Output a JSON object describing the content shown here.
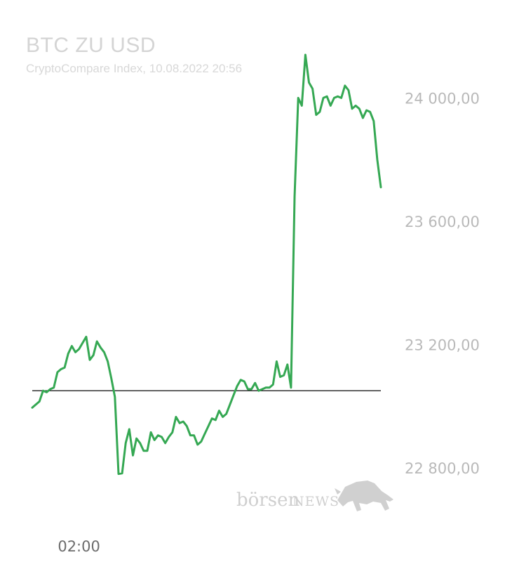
{
  "header": {
    "title": "BTC ZU USD",
    "subtitle": "CryptoCompare Index, 10.08.2022 20:56"
  },
  "watermark": {
    "brand_lower": "börsen",
    "brand_upper": "NEWS",
    "icon": "bull-icon"
  },
  "colors": {
    "line": "#35a853",
    "reference": "#333333",
    "tick_text": "#b9b9b9",
    "title_text": "#d4d4d4"
  },
  "chart_data": {
    "type": "line",
    "title": "BTC ZU USD",
    "subtitle": "CryptoCompare Index, 10.08.2022 20:56",
    "xlabel": "",
    "ylabel": "",
    "ylim": [
      22745,
      24140
    ],
    "y_ticks": [
      {
        "value": 24000,
        "label": "24 000,00"
      },
      {
        "value": 23600,
        "label": "23 600,00"
      },
      {
        "value": 23200,
        "label": "23 200,00"
      },
      {
        "value": 22800,
        "label": "22 800,00"
      }
    ],
    "x_ticks": [
      {
        "index": 13,
        "label": "02:00"
      }
    ],
    "reference_value": 23050,
    "grid": false,
    "legend": "none",
    "series": [
      {
        "values": [
          22995,
          23005,
          23015,
          23050,
          23045,
          23055,
          23060,
          23110,
          23120,
          23125,
          23170,
          23195,
          23175,
          23185,
          23205,
          23225,
          23150,
          23165,
          23210,
          23190,
          23175,
          23145,
          23090,
          23030,
          22780,
          22782,
          22880,
          22925,
          22840,
          22895,
          22880,
          22855,
          22855,
          22915,
          22890,
          22905,
          22900,
          22880,
          22900,
          22915,
          22965,
          22945,
          22950,
          22935,
          22905,
          22905,
          22875,
          22885,
          22910,
          22935,
          22960,
          22955,
          22985,
          22965,
          22975,
          23005,
          23035,
          23065,
          23085,
          23080,
          23055,
          23055,
          23075,
          23050,
          23055,
          23060,
          23060,
          23070,
          23145,
          23095,
          23100,
          23135,
          23060,
          23680,
          24000,
          23975,
          24140,
          24050,
          24030,
          23945,
          23955,
          24000,
          24005,
          23975,
          24000,
          24005,
          24000,
          24040,
          24025,
          23965,
          23975,
          23965,
          23935,
          23960,
          23955,
          23925,
          23800,
          23710
        ]
      }
    ]
  }
}
